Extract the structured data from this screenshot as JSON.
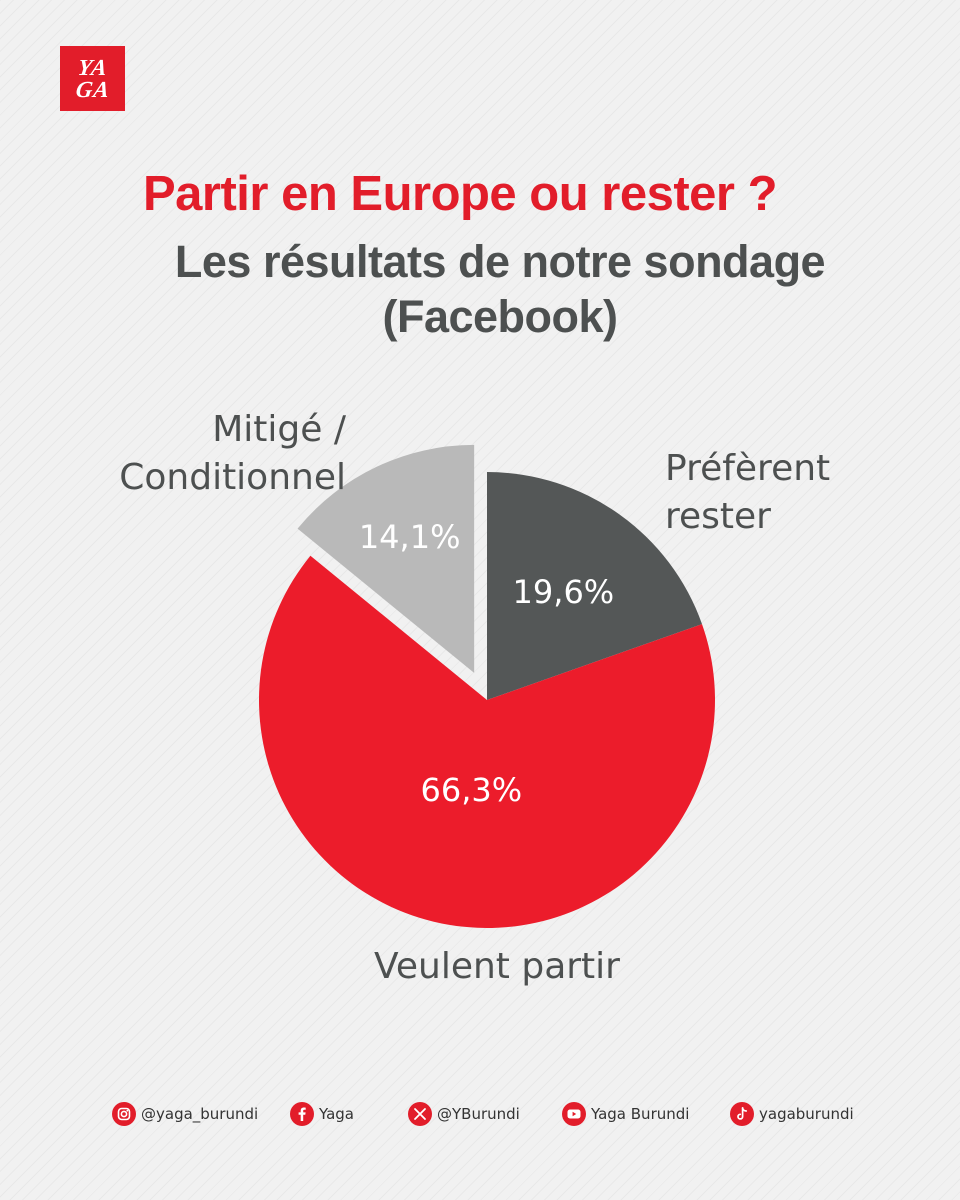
{
  "brand": {
    "logo_line1": "YA",
    "logo_line2": "GA",
    "accent": "#e21d2a"
  },
  "header": {
    "title": "Partir en Europe ou rester ?",
    "subtitle_line1": "Les résultats de notre sondage",
    "subtitle_line2": "(Facebook)"
  },
  "chart_data": {
    "type": "pie",
    "title": "Partir en Europe ou rester ?",
    "subtitle": "Les résultats de notre sondage (Facebook)",
    "unit": "%",
    "slices": [
      {
        "label": [
          "Préfèrent",
          "rester"
        ],
        "value": 19.6,
        "value_label": "19,6%",
        "color": "#545757",
        "exploded": false
      },
      {
        "label": [
          "Veulent partir"
        ],
        "value": 66.3,
        "value_label": "66,3%",
        "color": "#ec1c2b",
        "exploded": false
      },
      {
        "label": [
          "Mitigé /",
          "Conditionnel"
        ],
        "value": 14.1,
        "value_label": "14,1%",
        "color": "#b9b9b9",
        "exploded": true
      }
    ],
    "start_angle_deg": 0,
    "direction": "clockwise"
  },
  "footer": {
    "socials": [
      {
        "icon": "instagram-icon",
        "text": "@yaga_burundi"
      },
      {
        "icon": "facebook-icon",
        "text": "Yaga"
      },
      {
        "icon": "x-icon",
        "text": "@YBurundi"
      },
      {
        "icon": "youtube-icon",
        "text": "Yaga Burundi"
      },
      {
        "icon": "tiktok-icon",
        "text": "yagaburundi"
      }
    ]
  }
}
